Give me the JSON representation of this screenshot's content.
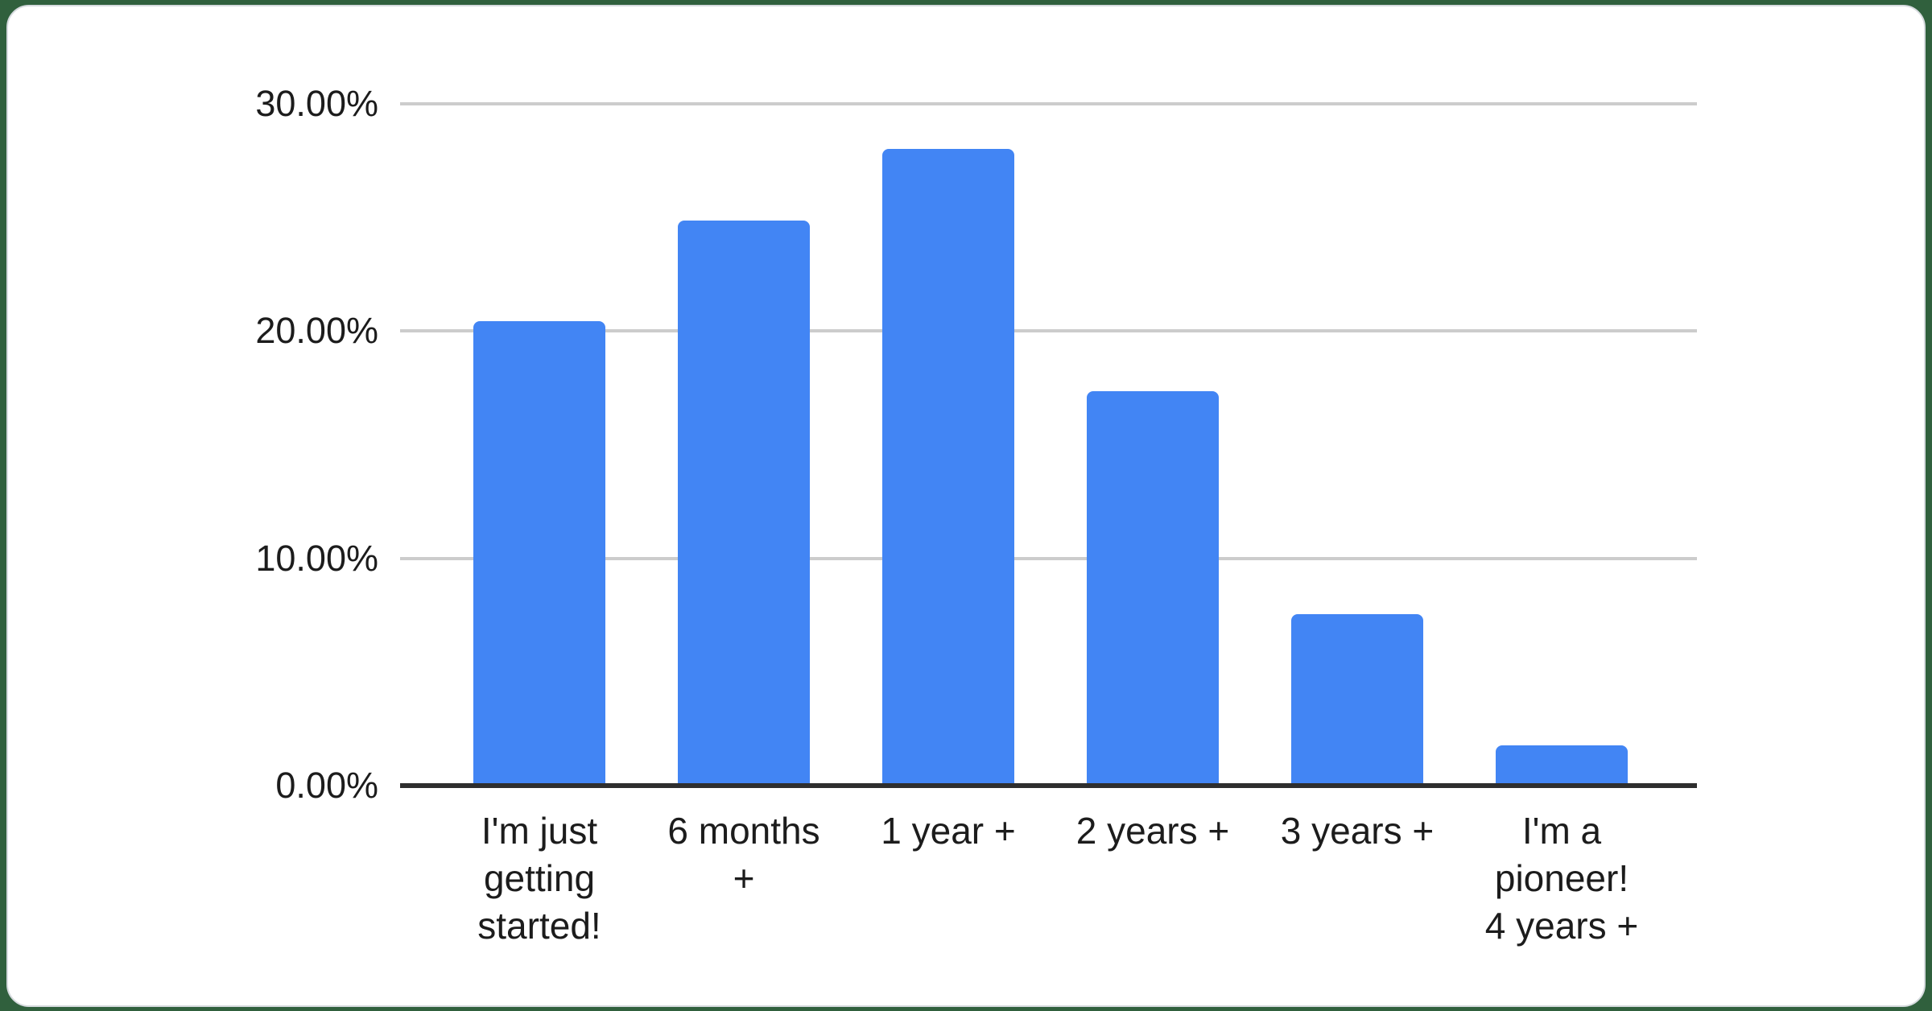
{
  "page": {
    "background_color": "#30603d",
    "card_background": "#ffffff",
    "card_border_color": "#d6dade"
  },
  "chart_data": {
    "type": "bar",
    "title": "",
    "xlabel": "",
    "ylabel": "",
    "categories": [
      "I'm just getting started!",
      "6 months +",
      "1 year +",
      "2 years +",
      "3 years +",
      "I'm a pioneer! 4 years +"
    ],
    "label_lines": [
      [
        "I'm just",
        "getting",
        "started!"
      ],
      [
        "6 months",
        "+"
      ],
      [
        "1 year +"
      ],
      [
        "2 years +"
      ],
      [
        "3 years +"
      ],
      [
        "I'm a",
        "pioneer!",
        "4 years +"
      ]
    ],
    "values": [
      20.45,
      24.87,
      28.0,
      17.37,
      7.55,
      1.76
    ],
    "value_unit": "%",
    "ylim": [
      0,
      30
    ],
    "yticks": [
      {
        "value": 30,
        "label": "30.00%"
      },
      {
        "value": 20,
        "label": "20.00%"
      },
      {
        "value": 10,
        "label": "10.00%"
      },
      {
        "value": 0,
        "label": "0.00%"
      }
    ],
    "grid": true,
    "legend_position": "none",
    "bar_color": "#4285f4",
    "gridline_color": "#cccccc",
    "axis_line_color": "#2e2e2e",
    "label_text_color": "#1c1c1c"
  }
}
